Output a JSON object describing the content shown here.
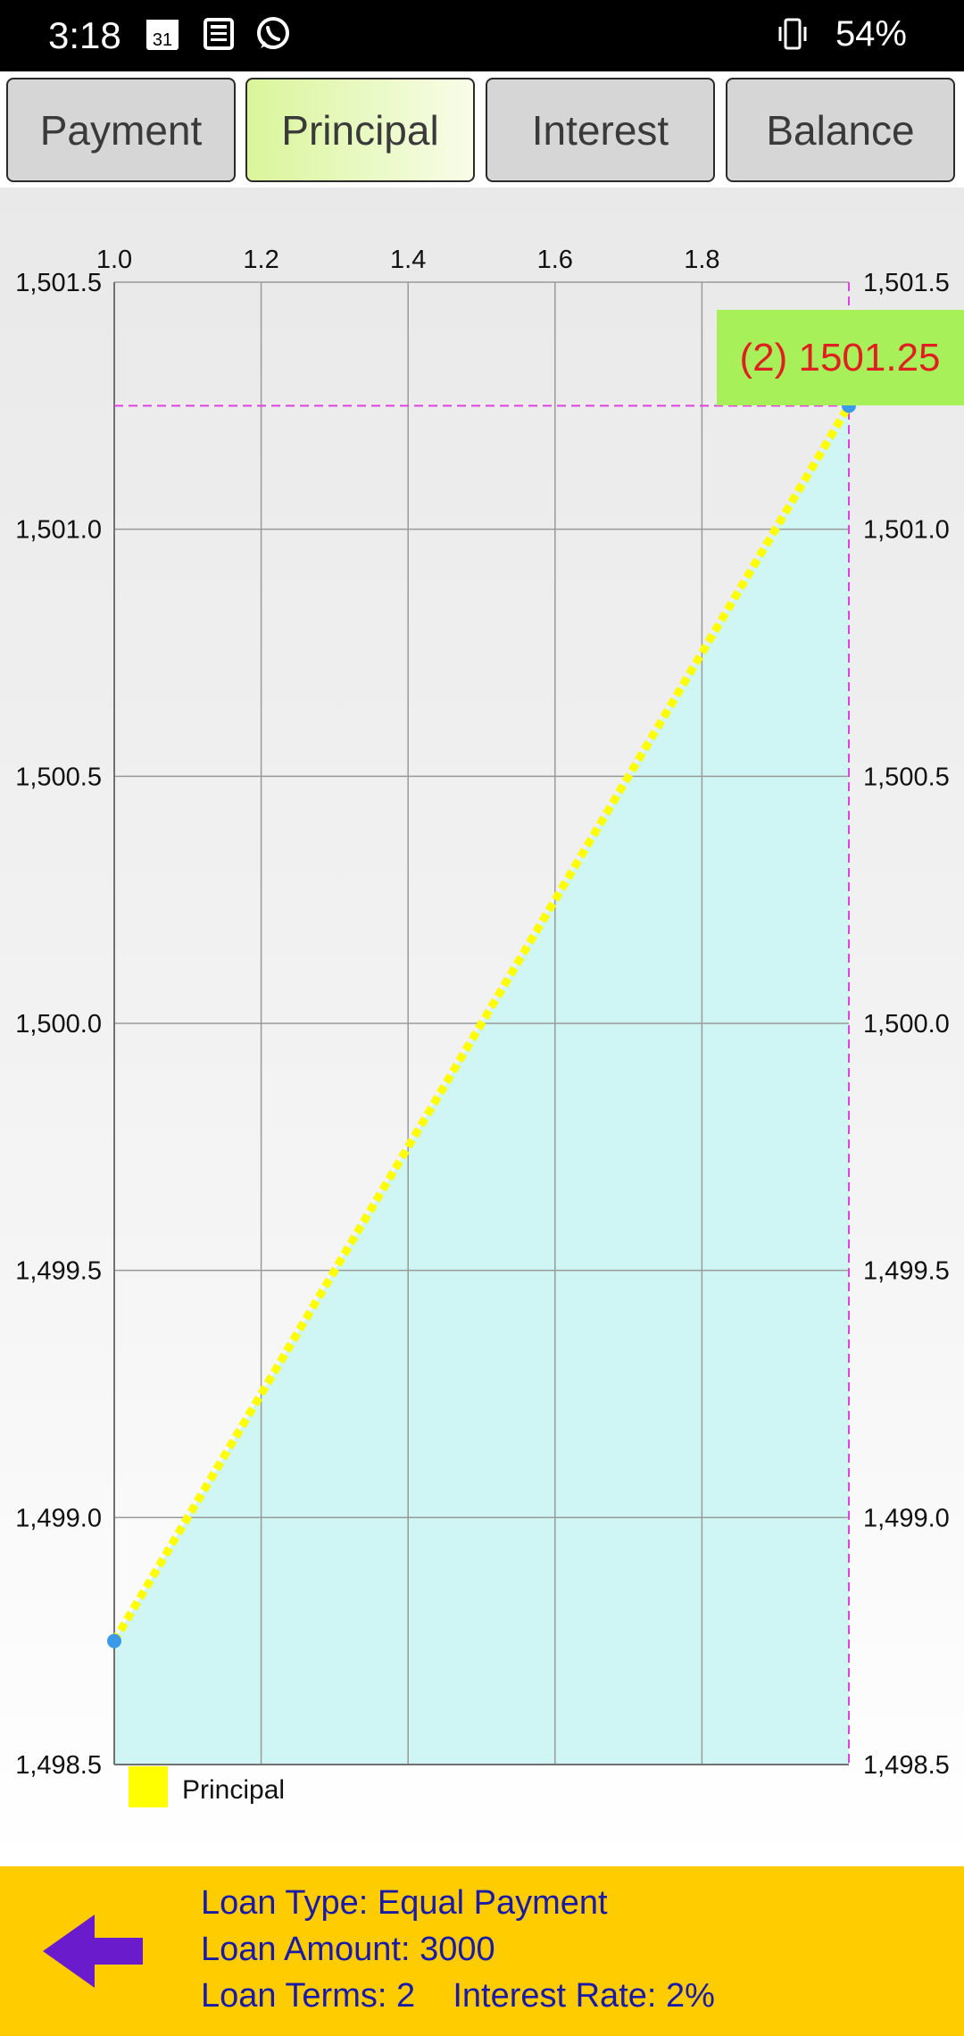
{
  "status_bar": {
    "time": "3:18",
    "battery": "54%",
    "icons": [
      "calendar-icon",
      "news-icon",
      "whatsapp-icon",
      "vibrate-icon"
    ]
  },
  "tabs": [
    {
      "label": "Payment",
      "active": false
    },
    {
      "label": "Principal",
      "active": true
    },
    {
      "label": "Interest",
      "active": false
    },
    {
      "label": "Balance",
      "active": false
    }
  ],
  "chart_data": {
    "type": "area",
    "series": [
      {
        "name": "Principal",
        "x": [
          1,
          2
        ],
        "y": [
          1498.75,
          1501.25
        ]
      }
    ],
    "x_ticks": [
      "1.0",
      "1.2",
      "1.4",
      "1.6",
      "1.8"
    ],
    "y_ticks": [
      "1,501.5",
      "1,501.0",
      "1,500.5",
      "1,500.0",
      "1,499.5",
      "1,499.0",
      "1,498.5"
    ],
    "xlim": [
      1,
      2
    ],
    "ylim": [
      1498.5,
      1501.5
    ],
    "grid": true,
    "legend": "bottom-left",
    "highlight": {
      "label": "(2) 1501.25",
      "x": 2,
      "y": 1501.25
    },
    "colors": {
      "line": "#ffff00",
      "fill": "#cff6f4",
      "point": "#3a9ae8",
      "crosshair": "#e040e0",
      "highlight_bg": "#a8f05a",
      "highlight_text": "#e02020"
    }
  },
  "info": {
    "loan_type": "Loan Type: Equal Payment",
    "loan_amount": "Loan Amount: 3000",
    "loan_terms_rate": "Loan Terms: 2    Interest Rate: 2%"
  },
  "colors": {
    "bottom_panel": "#ffcc00",
    "info_text": "#1a1aa8",
    "back_arrow": "#6a1ccc"
  }
}
